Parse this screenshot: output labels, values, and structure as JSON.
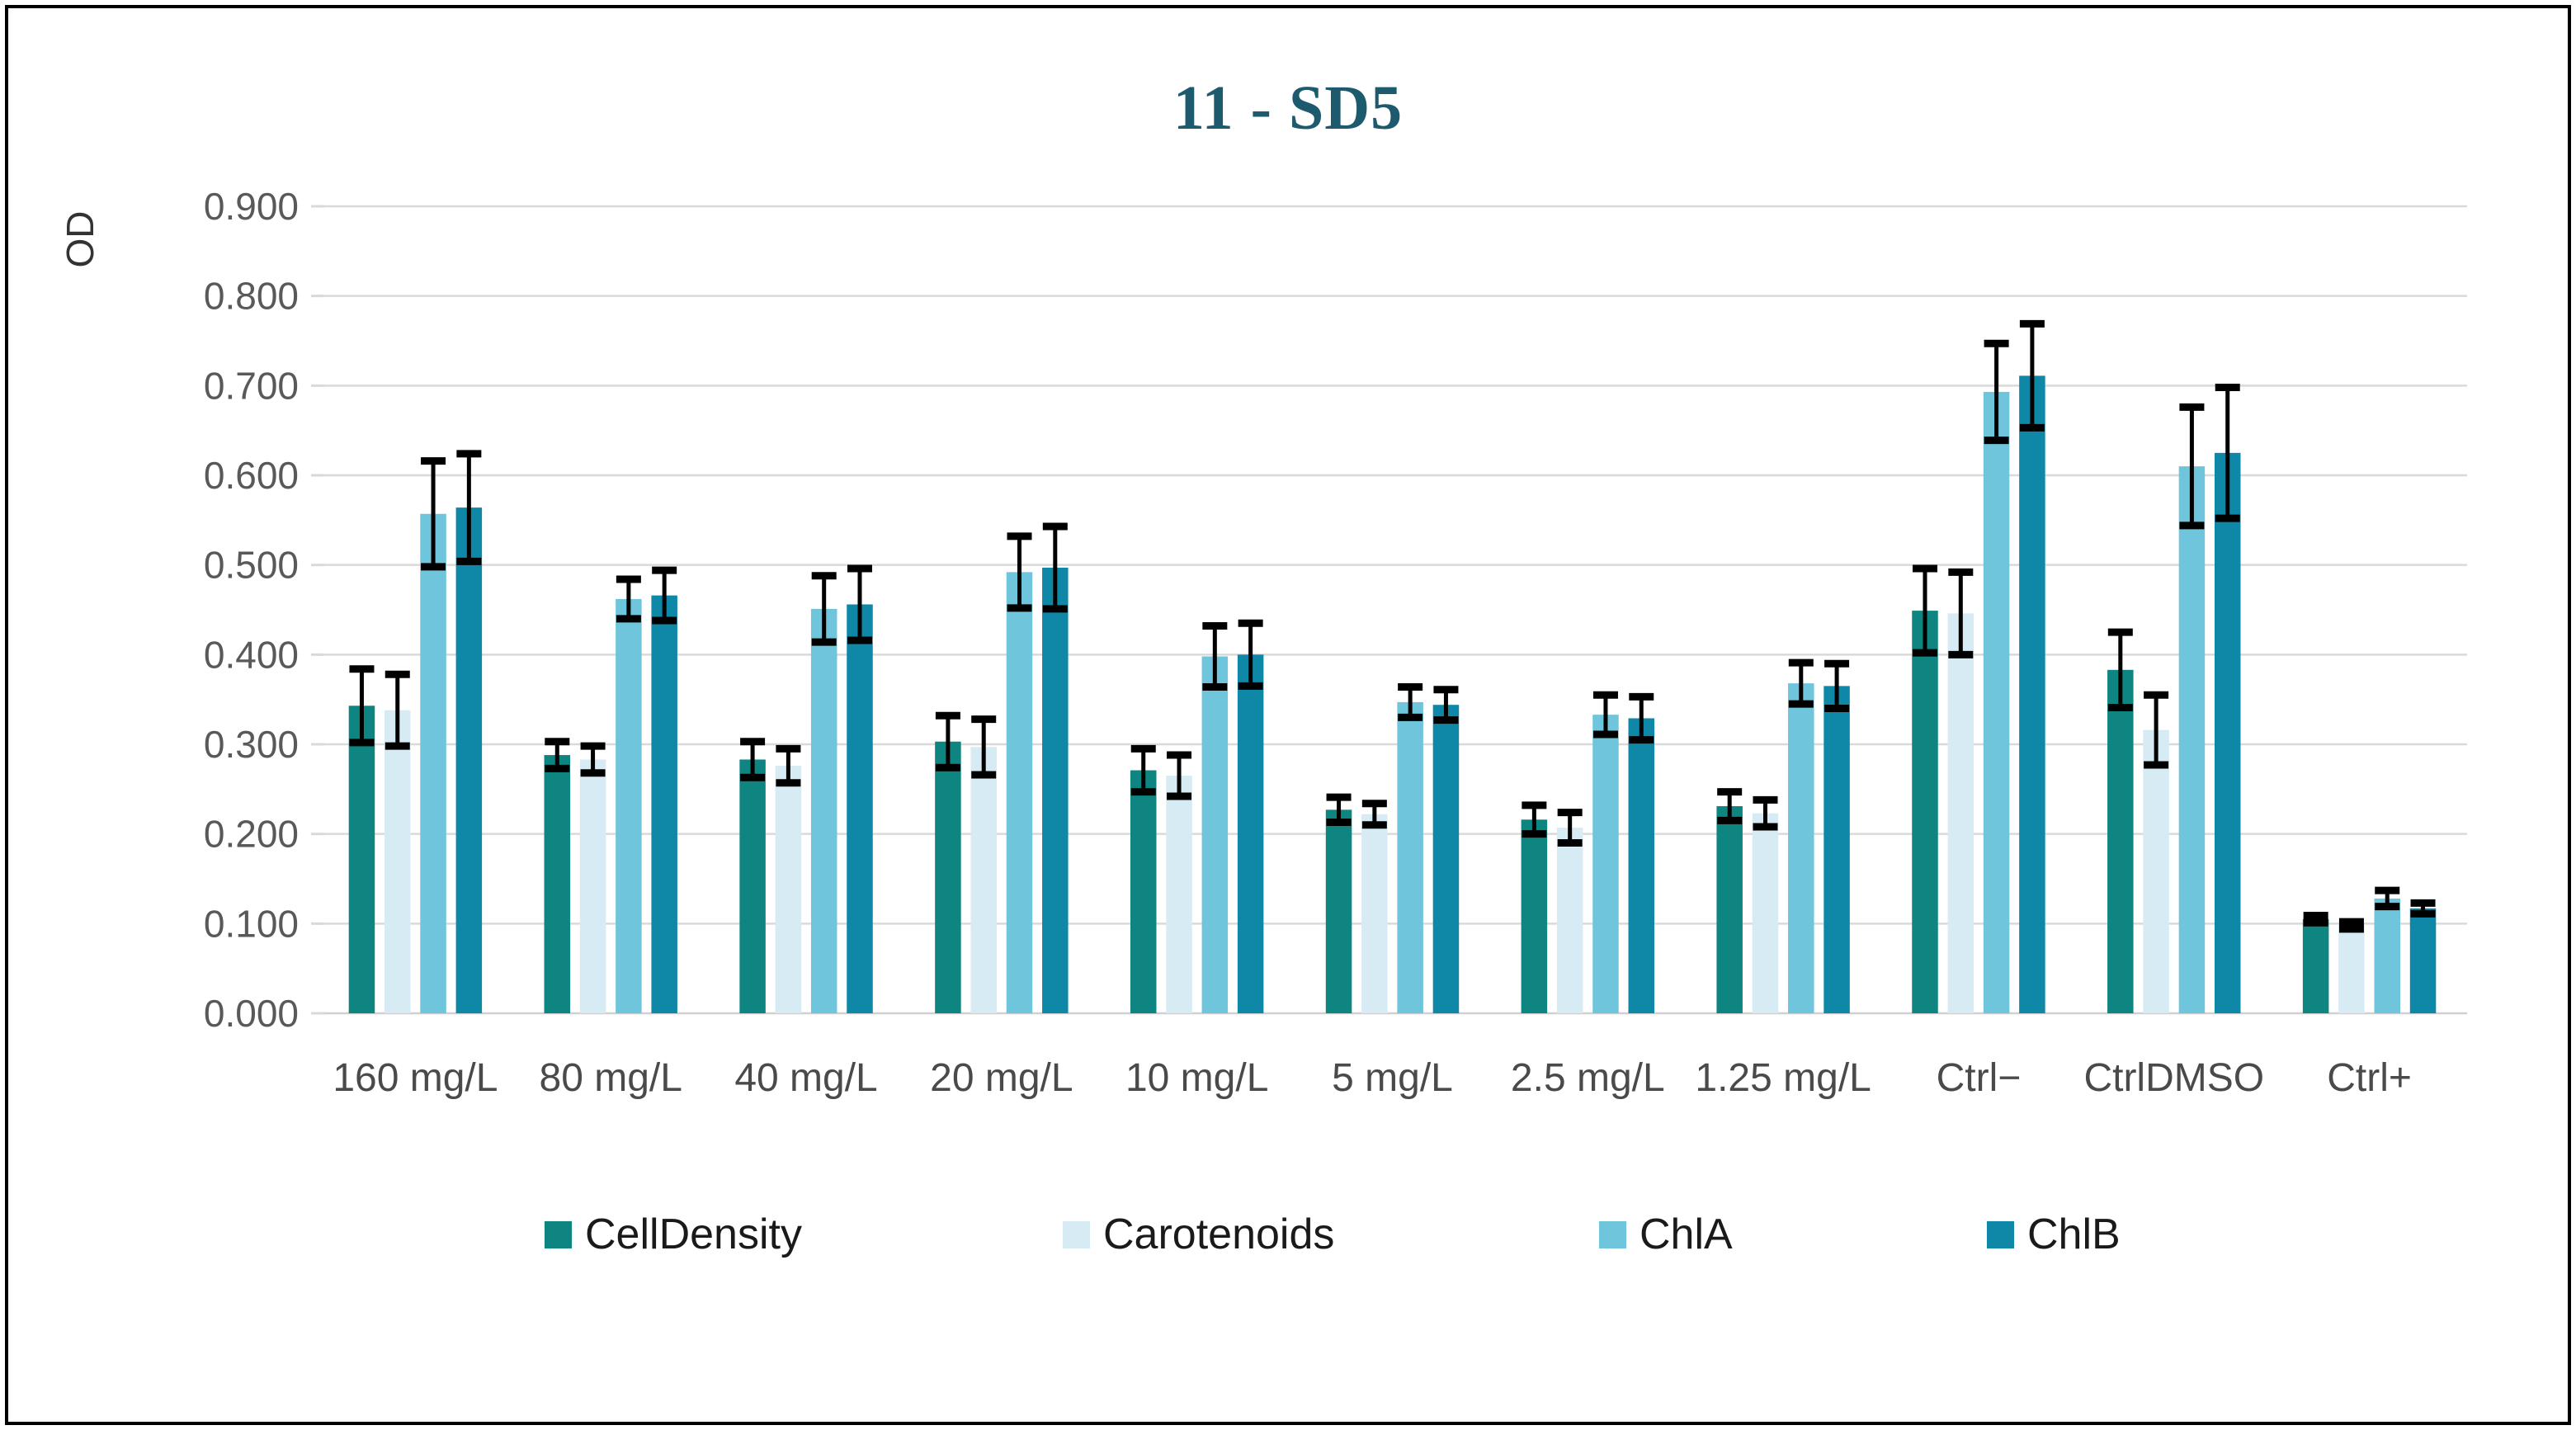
{
  "frame": {
    "border_color": "#000000",
    "background": "#ffffff"
  },
  "chart_data": {
    "type": "bar",
    "title": "11 - SD5",
    "ylabel": "OD",
    "xlabel": "",
    "ylim": [
      0,
      0.9
    ],
    "ytick_step": 0.1,
    "ytick_decimals": 3,
    "grid": true,
    "legend_position": "bottom",
    "categories": [
      "160 mg/L",
      "80 mg/L",
      "40 mg/L",
      "20 mg/L",
      "10 mg/L",
      "5 mg/L",
      "2.5 mg/L",
      "1.25 mg/L",
      "Ctrl−",
      "CtrlDMSO",
      "Ctrl+"
    ],
    "series": [
      {
        "name": "CellDensity",
        "color": "#0E8580",
        "values": [
          0.343,
          0.288,
          0.283,
          0.303,
          0.271,
          0.227,
          0.216,
          0.231,
          0.449,
          0.383,
          0.105
        ],
        "errors": [
          0.041,
          0.015,
          0.02,
          0.029,
          0.024,
          0.014,
          0.016,
          0.016,
          0.047,
          0.042,
          0.004
        ]
      },
      {
        "name": "Carotenoids",
        "color": "#D7EBF4",
        "values": [
          0.338,
          0.283,
          0.276,
          0.297,
          0.265,
          0.222,
          0.207,
          0.223,
          0.446,
          0.316,
          0.098
        ],
        "errors": [
          0.04,
          0.015,
          0.019,
          0.031,
          0.023,
          0.012,
          0.017,
          0.015,
          0.046,
          0.039,
          0.004
        ]
      },
      {
        "name": "ChlA",
        "color": "#6FC5DC",
        "values": [
          0.557,
          0.462,
          0.451,
          0.492,
          0.398,
          0.347,
          0.333,
          0.368,
          0.693,
          0.61,
          0.128
        ],
        "errors": [
          0.059,
          0.022,
          0.037,
          0.04,
          0.034,
          0.017,
          0.022,
          0.023,
          0.054,
          0.066,
          0.009
        ]
      },
      {
        "name": "ChlB",
        "color": "#0F87A6",
        "values": [
          0.564,
          0.466,
          0.456,
          0.497,
          0.4,
          0.344,
          0.329,
          0.365,
          0.711,
          0.625,
          0.117
        ],
        "errors": [
          0.06,
          0.028,
          0.04,
          0.046,
          0.035,
          0.017,
          0.024,
          0.025,
          0.058,
          0.073,
          0.006
        ]
      }
    ],
    "colors": {
      "error_bar": "#000000",
      "gridline": "#D9D9D9",
      "baseline": "#D0D0D0",
      "tick_label": "#595959",
      "category_label": "#4A4A4A",
      "title": "#1E5A6E",
      "legend_text": "#1A1A1A"
    }
  }
}
